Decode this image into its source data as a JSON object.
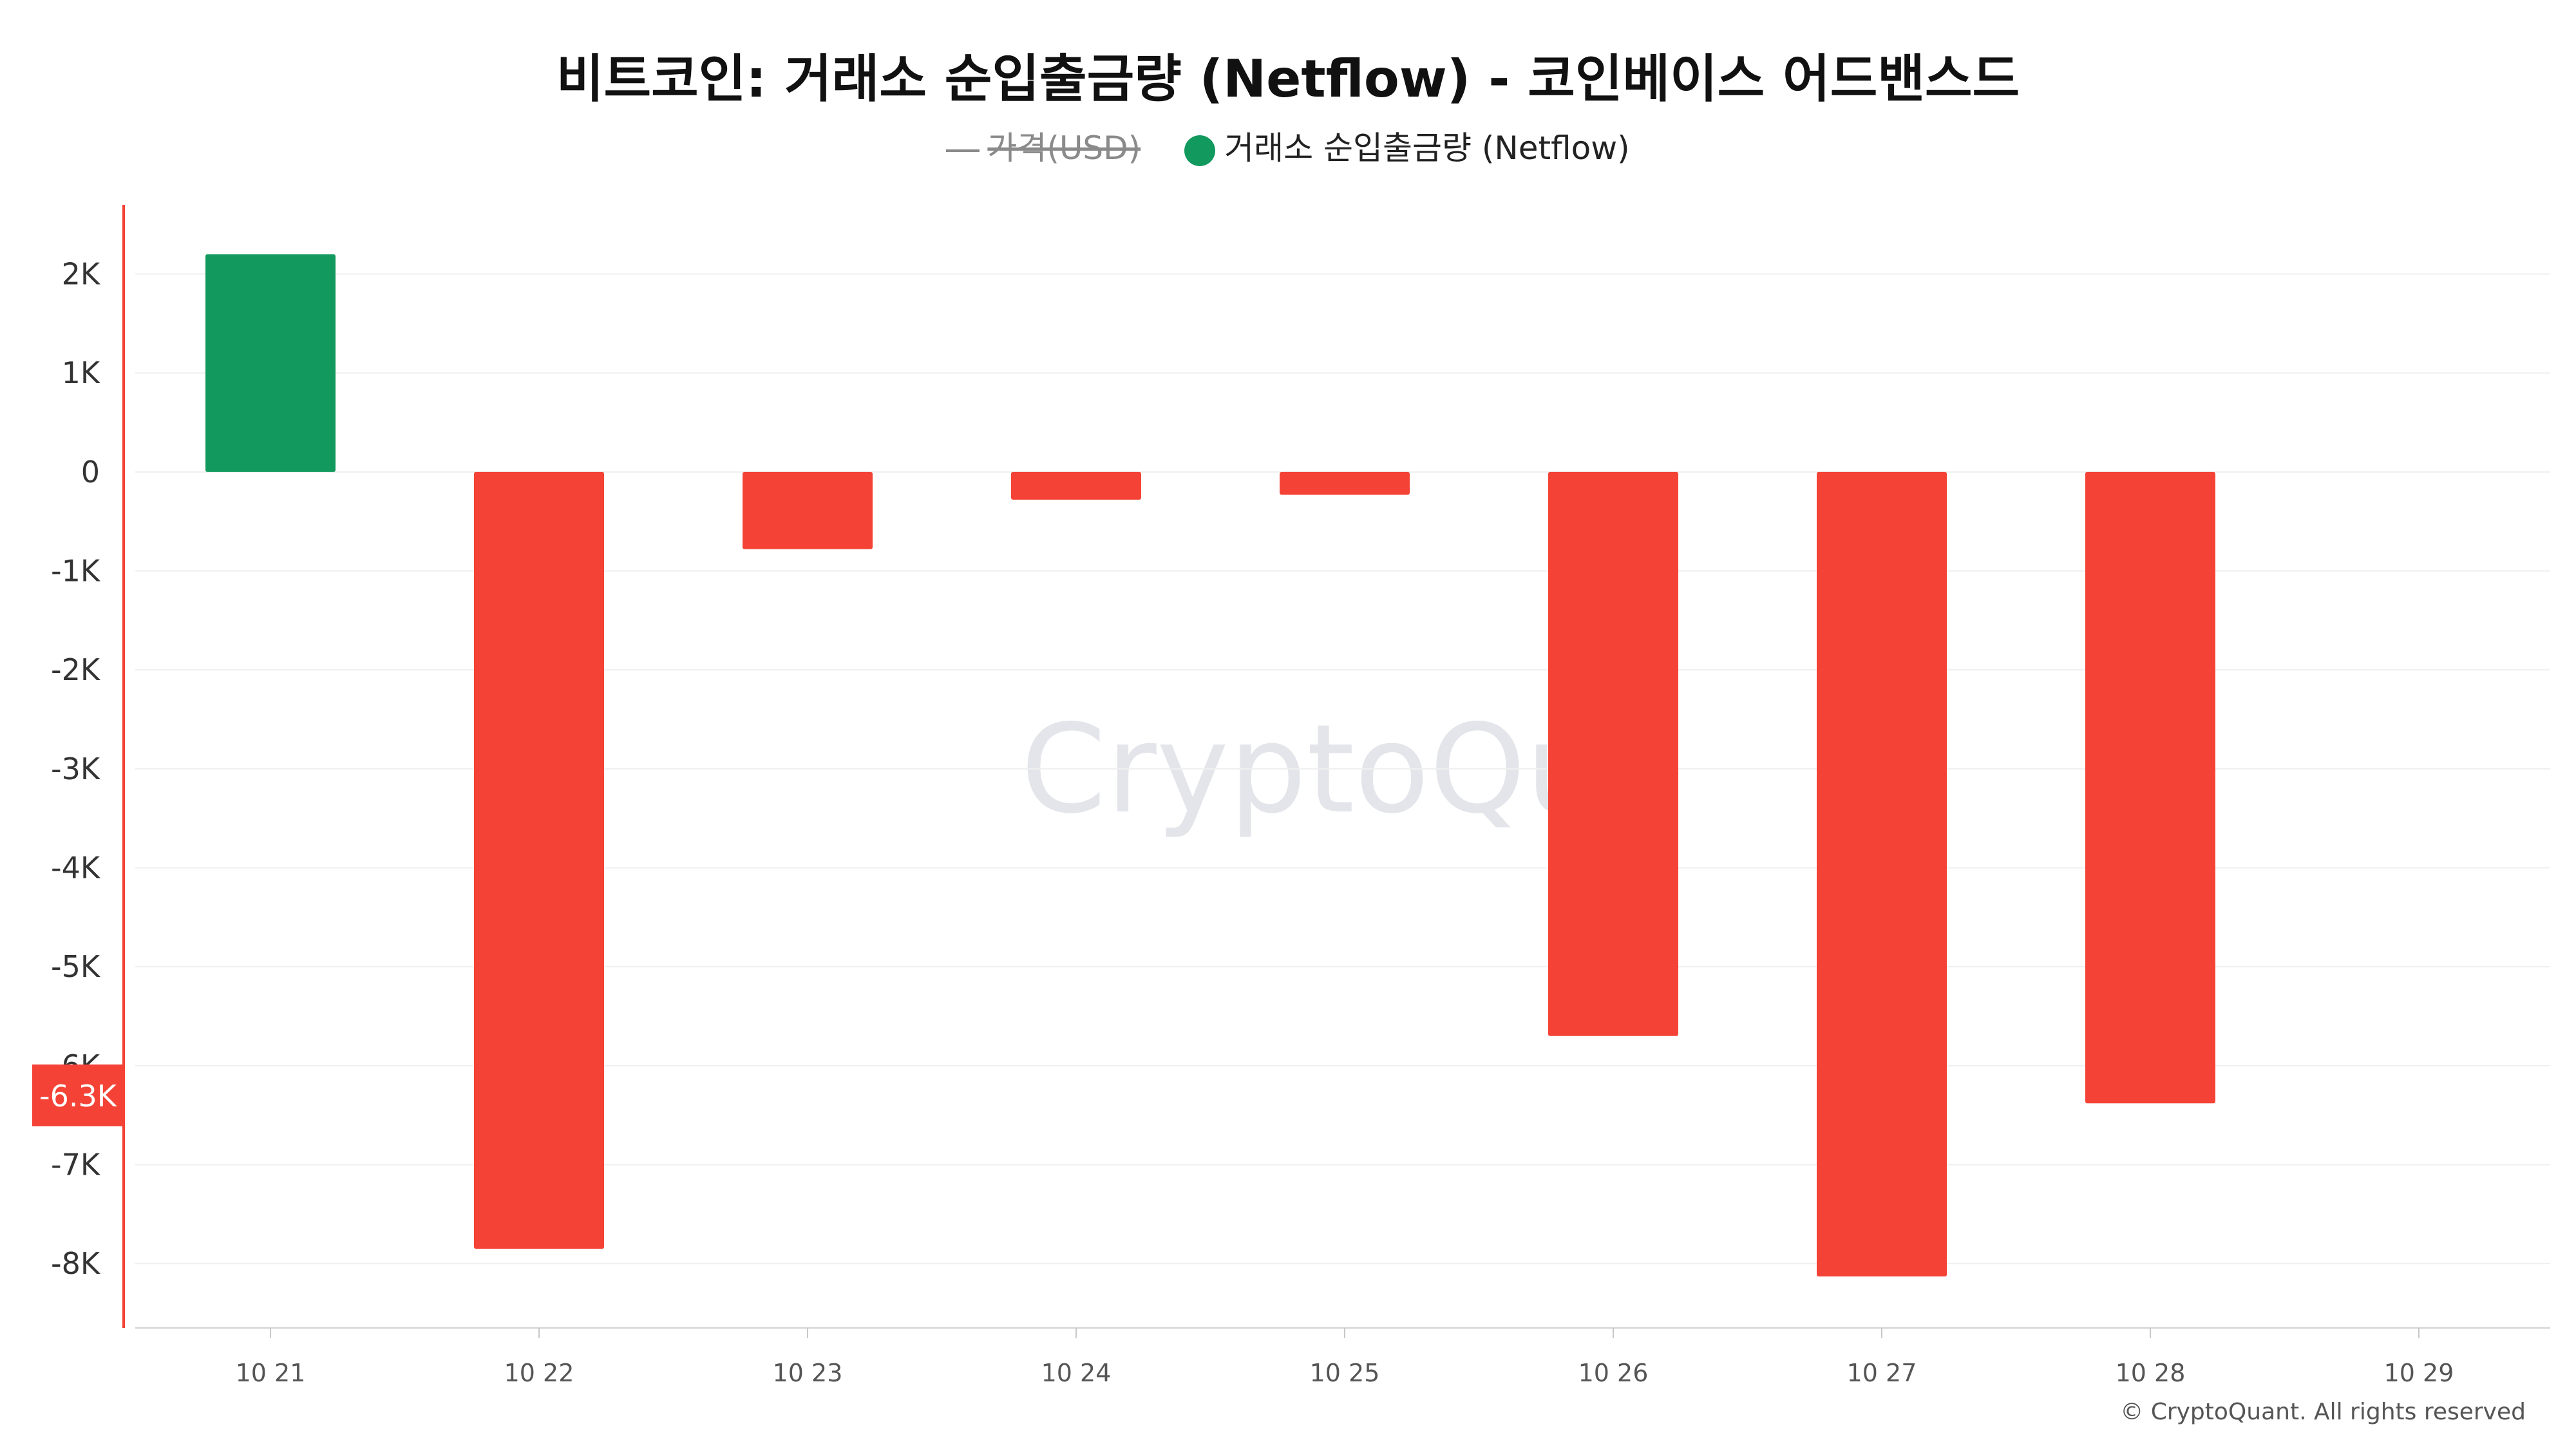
{
  "title": "비트코인: 거래소 순입출금량 (Netflow) - 코인베이스 어드밴스드",
  "legend": {
    "price_label": "가격(USD)",
    "netflow_label": "거래소 순입출금량 (Netflow)"
  },
  "watermark": "CryptoQuant",
  "copyright": "© CryptoQuant. All rights reserved",
  "colors": {
    "positive": "#12995e",
    "negative": "#f44336",
    "axis_marker": "#f44336",
    "grid": "#efefef"
  },
  "chart_data": {
    "type": "bar",
    "categories": [
      "10 21",
      "10 22",
      "10 23",
      "10 24",
      "10 25",
      "10 26",
      "10 27",
      "10 28",
      "10 29"
    ],
    "series": [
      {
        "name": "거래소 순입출금량 (Netflow)",
        "values": [
          2200,
          -7850,
          -780,
          -280,
          -230,
          -5700,
          -8130,
          -6380,
          null
        ]
      }
    ],
    "yticks": [
      2000,
      1000,
      0,
      -1000,
      -2000,
      -3000,
      -4000,
      -5000,
      -6000,
      -7000,
      -8000
    ],
    "ytick_labels": [
      "2K",
      "1K",
      "0",
      "-1K",
      "-2K",
      "-3K",
      "-4K",
      "-5K",
      "-6K",
      "-7K",
      "-8K"
    ],
    "ylim": [
      -8650,
      2700
    ],
    "current_value_label": "-6.3K",
    "current_value": -6300,
    "grid": true,
    "legend_position": "top-center"
  }
}
